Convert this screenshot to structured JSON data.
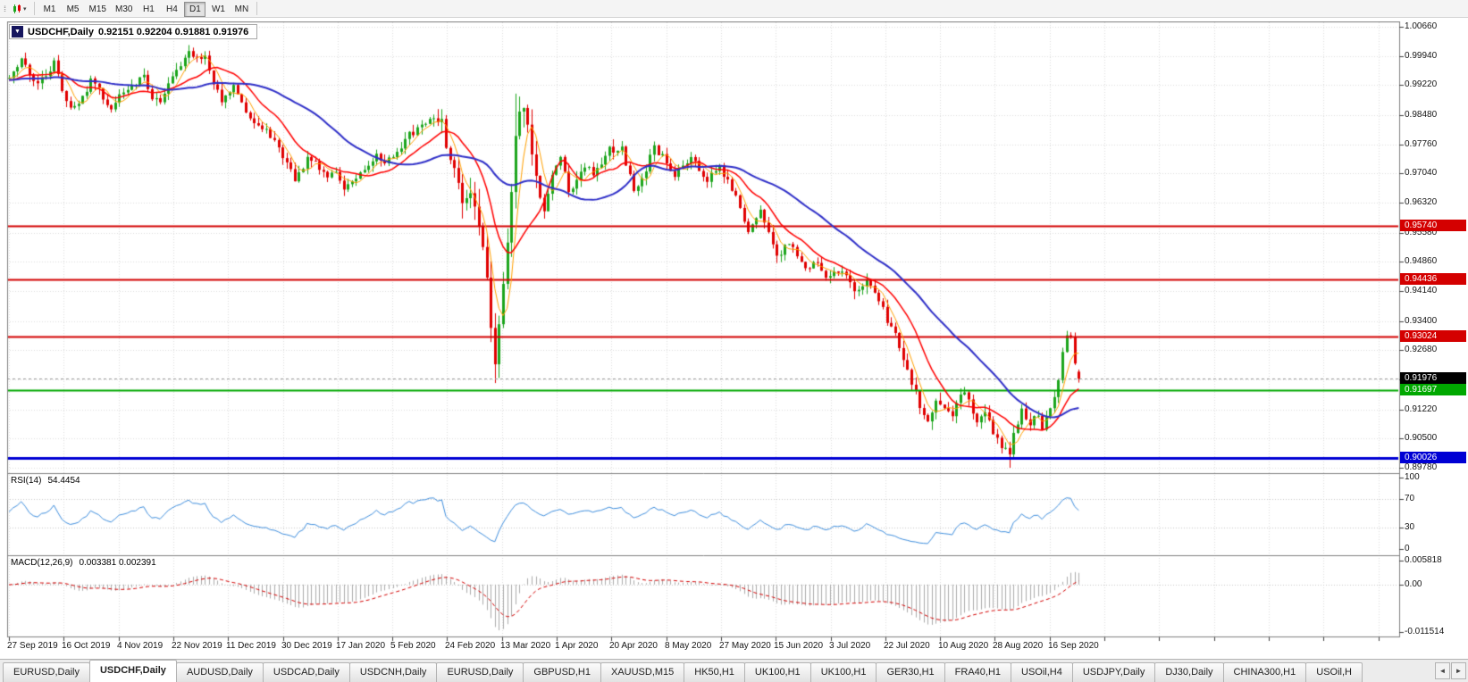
{
  "toolbar": {
    "grip_icon": "⁞⁞",
    "timeframes": [
      {
        "label": "M1",
        "active": false
      },
      {
        "label": "M5",
        "active": false
      },
      {
        "label": "M15",
        "active": false
      },
      {
        "label": "M30",
        "active": false
      },
      {
        "label": "H1",
        "active": false
      },
      {
        "label": "H4",
        "active": false
      },
      {
        "label": "D1",
        "active": true
      },
      {
        "label": "W1",
        "active": false
      },
      {
        "label": "MN",
        "active": false
      }
    ]
  },
  "chart_header": {
    "collapse_icon": "▼",
    "symbol": "USDCHF,Daily",
    "ohlc": "0.92151 0.92204 0.91881 0.91976"
  },
  "price_axis": {
    "labels": [
      "1.00660",
      "0.99940",
      "0.99220",
      "0.98480",
      "0.97760",
      "0.97040",
      "0.96320",
      "0.95580",
      "0.94860",
      "0.94140",
      "0.93400",
      "0.92680",
      "0.91960",
      "0.91220",
      "0.90500",
      "0.89780"
    ]
  },
  "date_axis": {
    "labels": [
      "27 Sep 2019",
      "16 Oct 2019",
      "4 Nov 2019",
      "22 Nov 2019",
      "11 Dec 2019",
      "30 Dec 2019",
      "17 Jan 2020",
      "5 Feb 2020",
      "24 Feb 2020",
      "13 Mar 2020",
      "1 Apr 2020",
      "20 Apr 2020",
      "8 May 2020",
      "27 May 2020",
      "15 Jun 2020",
      "3 Jul 2020",
      "22 Jul 2020",
      "10 Aug 2020",
      "28 Aug 2020",
      "16 Sep 2020"
    ]
  },
  "levels": [
    {
      "name": "resistance-1",
      "label": "0.95740",
      "price": 0.9574,
      "color": "#d40000",
      "width": 2
    },
    {
      "name": "resistance-2",
      "label": "0.94436",
      "price": 0.94436,
      "color": "#d40000",
      "width": 2
    },
    {
      "name": "resistance-3",
      "label": "0.93024",
      "price": 0.93024,
      "color": "#d40000",
      "width": 2
    },
    {
      "name": "support-green",
      "label": "0.91697",
      "price": 0.91697,
      "color": "#00a800",
      "width": 2
    },
    {
      "name": "support-blue",
      "label": "0.90026",
      "price": 0.90026,
      "color": "#0000d4",
      "width": 3
    }
  ],
  "current_price": {
    "label": "0.91976",
    "price": 0.91976,
    "badge_color": "#000000"
  },
  "rsi_panel": {
    "label": "RSI(14)",
    "value": "54.4454",
    "scale_labels": [
      "100",
      "70",
      "30",
      "0"
    ],
    "level_lines": [
      70,
      30
    ]
  },
  "macd_panel": {
    "label": "MACD(12,26,9)",
    "values": "0.003381 0.002391",
    "scale_labels": [
      "0.005818",
      "0.00",
      "-0.011514"
    ]
  },
  "tabs": [
    {
      "label": "EURUSD,Daily",
      "active": false
    },
    {
      "label": "USDCHF,Daily",
      "active": true
    },
    {
      "label": "AUDUSD,Daily",
      "active": false
    },
    {
      "label": "USDCAD,Daily",
      "active": false
    },
    {
      "label": "USDCNH,Daily",
      "active": false
    },
    {
      "label": "EURUSD,Daily",
      "active": false
    },
    {
      "label": "GBPUSD,H1",
      "active": false
    },
    {
      "label": "XAUUSD,M15",
      "active": false
    },
    {
      "label": "HK50,H1",
      "active": false
    },
    {
      "label": "UK100,H1",
      "active": false
    },
    {
      "label": "UK100,H1",
      "active": false
    },
    {
      "label": "GER30,H1",
      "active": false
    },
    {
      "label": "FRA40,H1",
      "active": false
    },
    {
      "label": "USOil,H4",
      "active": false
    },
    {
      "label": "USDJPY,Daily",
      "active": false
    },
    {
      "label": "DJ30,Daily",
      "active": false
    },
    {
      "label": "CHINA300,H1",
      "active": false
    },
    {
      "label": "USOil,H",
      "active": false
    }
  ],
  "tab_scroll": {
    "left": "◄",
    "right": "►"
  },
  "chart_data": {
    "type": "candlestick",
    "symbol": "USDCHF",
    "timeframe": "Daily",
    "bars": 263,
    "last_candle": {
      "open": 0.92151,
      "high": 0.92204,
      "low": 0.91881,
      "close": 0.91976
    },
    "up_color": "#1ca51c",
    "down_color": "#e00000",
    "price_scale": {
      "max": 1.00792,
      "min": 0.89648
    },
    "close_anchors": [
      [
        0,
        0.9935
      ],
      [
        2,
        0.9972
      ],
      [
        3,
        0.9992
      ],
      [
        5,
        0.9942
      ],
      [
        7,
        0.9926
      ],
      [
        9,
        0.9946
      ],
      [
        11,
        0.9976
      ],
      [
        13,
        0.9906
      ],
      [
        15,
        0.986
      ],
      [
        18,
        0.9896
      ],
      [
        20,
        0.9931
      ],
      [
        22,
        0.9906
      ],
      [
        25,
        0.9866
      ],
      [
        28,
        0.9906
      ],
      [
        31,
        0.9931
      ],
      [
        33,
        0.9946
      ],
      [
        35,
        0.9891
      ],
      [
        37,
        0.9881
      ],
      [
        40,
        0.9951
      ],
      [
        44,
        1.0001
      ],
      [
        46,
        0.9986
      ],
      [
        48,
        0.9996
      ],
      [
        50,
        0.9921
      ],
      [
        52,
        0.9886
      ],
      [
        55,
        0.9921
      ],
      [
        57,
        0.9876
      ],
      [
        60,
        0.9831
      ],
      [
        63,
        0.9811
      ],
      [
        65,
        0.9786
      ],
      [
        67,
        0.9741
      ],
      [
        70,
        0.9691
      ],
      [
        72,
        0.9721
      ],
      [
        73,
        0.9751
      ],
      [
        75,
        0.9731
      ],
      [
        78,
        0.9701
      ],
      [
        80,
        0.9701
      ],
      [
        82,
        0.9666
      ],
      [
        85,
        0.9691
      ],
      [
        88,
        0.9721
      ],
      [
        90,
        0.9751
      ],
      [
        92,
        0.9736
      ],
      [
        94,
        0.9741
      ],
      [
        96,
        0.9761
      ],
      [
        98,
        0.9801
      ],
      [
        100,
        0.9811
      ],
      [
        102,
        0.9831
      ],
      [
        104,
        0.9851
      ],
      [
        106,
        0.9836
      ],
      [
        107,
        0.9781
      ],
      [
        109,
        0.9701
      ],
      [
        111,
        0.9631
      ],
      [
        113,
        0.9656
      ],
      [
        115,
        0.9591
      ],
      [
        117,
        0.9461
      ],
      [
        118,
        0.9321
      ],
      [
        119,
        0.9251
      ],
      [
        120,
        0.9351
      ],
      [
        121,
        0.9451
      ],
      [
        122,
        0.9551
      ],
      [
        123,
        0.9641
      ],
      [
        124,
        0.9791
      ],
      [
        125,
        0.9851
      ],
      [
        126,
        0.9871
      ],
      [
        127,
        0.9821
      ],
      [
        128,
        0.9751
      ],
      [
        129,
        0.9681
      ],
      [
        130,
        0.9631
      ],
      [
        131,
        0.9601
      ],
      [
        132,
        0.9651
      ],
      [
        133,
        0.9701
      ],
      [
        135,
        0.9751
      ],
      [
        137,
        0.9656
      ],
      [
        139,
        0.9691
      ],
      [
        141,
        0.9721
      ],
      [
        143,
        0.9701
      ],
      [
        145,
        0.9731
      ],
      [
        147,
        0.9761
      ],
      [
        150,
        0.9771
      ],
      [
        153,
        0.9656
      ],
      [
        155,
        0.9691
      ],
      [
        158,
        0.9766
      ],
      [
        161,
        0.9731
      ],
      [
        163,
        0.9701
      ],
      [
        165,
        0.9721
      ],
      [
        167,
        0.9746
      ],
      [
        169,
        0.9716
      ],
      [
        171,
        0.9691
      ],
      [
        174,
        0.9721
      ],
      [
        176,
        0.9681
      ],
      [
        178,
        0.9641
      ],
      [
        180,
        0.9591
      ],
      [
        181,
        0.9561
      ],
      [
        183,
        0.9601
      ],
      [
        184,
        0.9621
      ],
      [
        186,
        0.9561
      ],
      [
        188,
        0.9501
      ],
      [
        190,
        0.9521
      ],
      [
        191,
        0.9536
      ],
      [
        193,
        0.9501
      ],
      [
        195,
        0.9466
      ],
      [
        197,
        0.9476
      ],
      [
        198,
        0.9481
      ],
      [
        200,
        0.9456
      ],
      [
        201,
        0.9451
      ],
      [
        203,
        0.9466
      ],
      [
        204,
        0.9471
      ],
      [
        206,
        0.9431
      ],
      [
        207,
        0.9406
      ],
      [
        209,
        0.9421
      ],
      [
        210,
        0.9441
      ],
      [
        212,
        0.9401
      ],
      [
        213,
        0.9381
      ],
      [
        215,
        0.9346
      ],
      [
        217,
        0.9311
      ],
      [
        219,
        0.9246
      ],
      [
        221,
        0.9181
      ],
      [
        223,
        0.9136
      ],
      [
        225,
        0.9086
      ],
      [
        226,
        0.9111
      ],
      [
        227,
        0.9141
      ],
      [
        229,
        0.9131
      ],
      [
        231,
        0.9106
      ],
      [
        233,
        0.9151
      ],
      [
        234,
        0.9166
      ],
      [
        236,
        0.9121
      ],
      [
        237,
        0.9096
      ],
      [
        239,
        0.9116
      ],
      [
        241,
        0.9061
      ],
      [
        243,
        0.9031
      ],
      [
        244,
        0.9021
      ],
      [
        245,
        0.9001
      ],
      [
        246,
        0.9061
      ],
      [
        248,
        0.9126
      ],
      [
        250,
        0.9086
      ],
      [
        252,
        0.9111
      ],
      [
        253,
        0.9076
      ],
      [
        254,
        0.9106
      ],
      [
        256,
        0.9146
      ],
      [
        257,
        0.9196
      ],
      [
        258,
        0.9256
      ],
      [
        259,
        0.9301
      ],
      [
        260,
        0.9296
      ],
      [
        261,
        0.9241
      ],
      [
        262,
        0.91976
      ]
    ],
    "vol_anchors": [
      [
        0,
        0.0035
      ],
      [
        100,
        0.0035
      ],
      [
        106,
        0.006
      ],
      [
        115,
        0.009
      ],
      [
        127,
        0.0085
      ],
      [
        133,
        0.005
      ],
      [
        140,
        0.0042
      ],
      [
        175,
        0.0036
      ],
      [
        200,
        0.0038
      ],
      [
        215,
        0.0046
      ],
      [
        228,
        0.0042
      ],
      [
        245,
        0.004
      ],
      [
        262,
        0.0028
      ]
    ],
    "wick_overrides": [
      {
        "bar": 119,
        "low": 0.9187
      },
      {
        "bar": 124,
        "high": 0.9901
      },
      {
        "bar": 245,
        "low": 0.8978
      },
      {
        "bar": 259,
        "high": 0.9308
      }
    ],
    "moving_averages": [
      {
        "period": 5,
        "color": "#ffa000",
        "width": 1
      },
      {
        "period": 13,
        "color": "#ff0000",
        "width": 1.5
      },
      {
        "period": 34,
        "color": "#2f2fc8",
        "width": 2
      }
    ],
    "indicators": {
      "rsi": {
        "period": 14,
        "color": "#3e8ede"
      },
      "macd": {
        "fast": 12,
        "slow": 26,
        "signal": 9,
        "hist_color": "#ababab",
        "signal_color": "#d40000",
        "scale_max": 0.005818,
        "scale_min": -0.011514
      }
    }
  }
}
